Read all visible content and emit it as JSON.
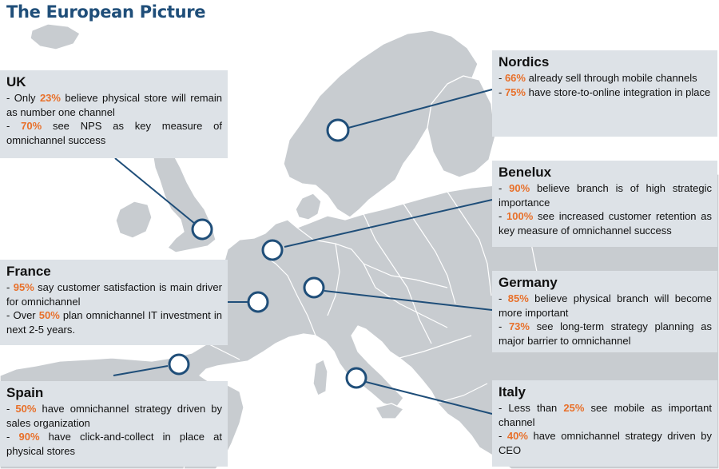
{
  "title": "The European Picture",
  "colors": {
    "title": "#1f4e79",
    "highlight": "#e8702a",
    "box_bg": "#dde2e7",
    "map_land": "#c8ccd0",
    "map_border": "#ffffff",
    "connector": "#1f4e79"
  },
  "regions": {
    "uk": {
      "name": "UK",
      "lines": [
        {
          "pre": "- Only ",
          "pct": "23%",
          "post": " believe physical store will remain as number one channel"
        },
        {
          "pre": "- ",
          "pct": "70%",
          "post": " see NPS as key measure of omnichannel success"
        }
      ]
    },
    "nordics": {
      "name": "Nordics",
      "lines": [
        {
          "pre": "- ",
          "pct": "66%",
          "post": " already sell through mobile channels"
        },
        {
          "pre": "- ",
          "pct": "75%",
          "post": " have store-to-online integration in place"
        }
      ]
    },
    "benelux": {
      "name": "Benelux",
      "lines": [
        {
          "pre": "- ",
          "pct": "90%",
          "post": " believe branch is of high strategic importance"
        },
        {
          "pre": "- ",
          "pct": "100%",
          "post": " see increased customer retention as key measure of omnichannel success"
        }
      ]
    },
    "france": {
      "name": "France",
      "lines": [
        {
          "pre": "- ",
          "pct": "95%",
          "post": " say customer satisfaction is main driver for omnichannel"
        },
        {
          "pre": "- Over ",
          "pct": "50%",
          "post": " plan omnichannel IT investment in next 2-5 years."
        }
      ]
    },
    "germany": {
      "name": "Germany",
      "lines": [
        {
          "pre": "- ",
          "pct": "85%",
          "post": " believe physical branch will become more important"
        },
        {
          "pre": "- ",
          "pct": "73%",
          "post": " see long-term strategy planning as major barrier to omnichannel"
        }
      ]
    },
    "spain": {
      "name": "Spain",
      "lines": [
        {
          "pre": "- ",
          "pct": "50%",
          "post": " have omnichannel strategy driven by sales organization"
        },
        {
          "pre": "- ",
          "pct": "90%",
          "post": " have click-and-collect in place at physical stores"
        }
      ]
    },
    "italy": {
      "name": "Italy",
      "lines": [
        {
          "pre": "- Less than ",
          "pct": "25%",
          "post": " see mobile as important channel"
        },
        {
          "pre": "- ",
          "pct": "40%",
          "post": " have omnichannel strategy driven by CEO"
        }
      ]
    }
  }
}
